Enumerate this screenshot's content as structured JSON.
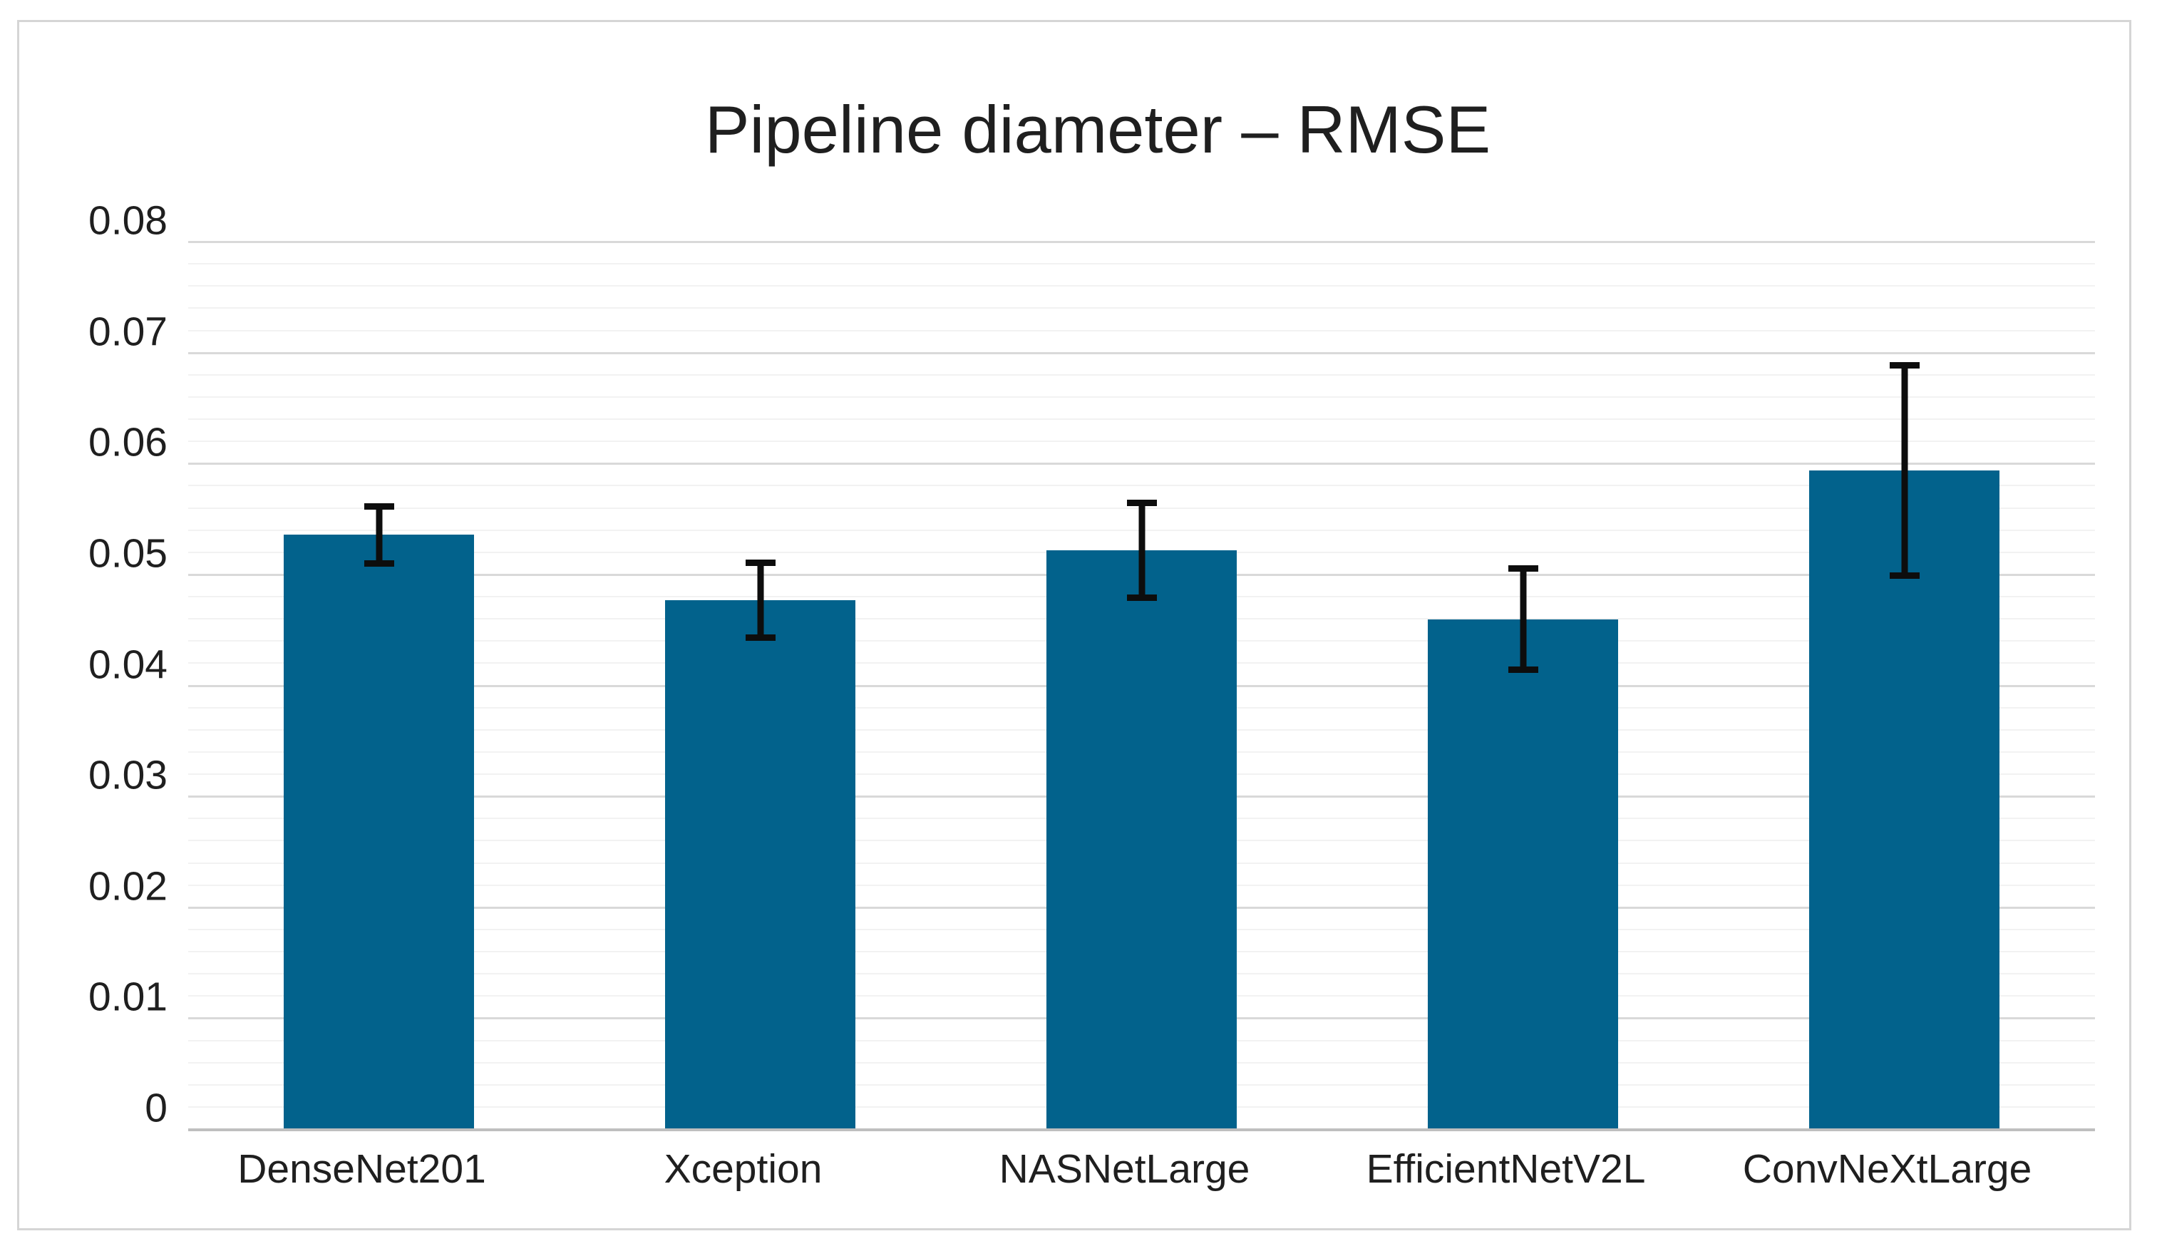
{
  "chart_data": {
    "type": "bar",
    "title": "Pipeline diameter – RMSE",
    "categories": [
      "DenseNet201",
      "Xception",
      "NASNetLarge",
      "EfficientNetV2L",
      "ConvNeXtLarge"
    ],
    "values": [
      0.0535,
      0.0476,
      0.0521,
      0.0459,
      0.0593
    ],
    "errors": [
      0.0026,
      0.0034,
      0.0043,
      0.0046,
      0.0095
    ],
    "xlabel": "",
    "ylabel": "",
    "ylim": [
      0,
      0.08
    ],
    "y_major_step": 0.01,
    "y_minor_step": 0.002,
    "y_tick_labels": [
      "0",
      "0.01",
      "0.02",
      "0.03",
      "0.04",
      "0.05",
      "0.06",
      "0.07",
      "0.08"
    ],
    "grid": "horizontal major and minor gridlines, no legend, no axis titles",
    "legend_position": "none",
    "bar_color": "#02628c",
    "error_bar_color": "#0d0d0d",
    "gridline_major_color": "#d9d9d9",
    "gridline_minor_color": "#f2f2f2",
    "axis_line_color": "#bfbfbf",
    "text_color": "#1f1f1f",
    "frame_border_color": "#d5d5d5",
    "background_color": "#ffffff"
  }
}
